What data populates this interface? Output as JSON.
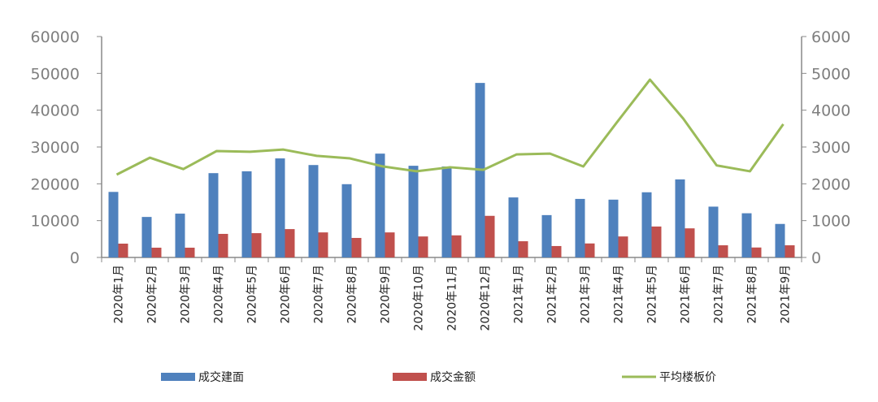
{
  "chart_data": {
    "type": "bar+line",
    "categories": [
      "2020年1月",
      "2020年2月",
      "2020年3月",
      "2020年4月",
      "2020年5月",
      "2020年6月",
      "2020年7月",
      "2020年8月",
      "2020年9月",
      "2020年10月",
      "2020年11月",
      "2020年12月",
      "2021年1月",
      "2021年2月",
      "2021年3月",
      "2021年4月",
      "2021年5月",
      "2021年6月",
      "2021年7月",
      "2021年8月",
      "2021年9月"
    ],
    "series": [
      {
        "name": "成交建面",
        "type": "bar",
        "axis": "left",
        "color": "#4f81bd",
        "values": [
          17800,
          11000,
          11900,
          22900,
          23400,
          26900,
          25100,
          19900,
          28200,
          24900,
          24700,
          47400,
          16300,
          11500,
          15900,
          15700,
          17700,
          21200,
          13800,
          12000,
          9100
        ]
      },
      {
        "name": "成交金额",
        "type": "bar",
        "axis": "left",
        "color": "#c0504d",
        "values": [
          3750,
          2650,
          2650,
          6400,
          6600,
          7700,
          6800,
          5300,
          6800,
          5700,
          6000,
          11300,
          4400,
          3100,
          3800,
          5700,
          8400,
          7900,
          3300,
          2700,
          3300
        ]
      },
      {
        "name": "平均楼板价",
        "type": "line",
        "axis": "right",
        "color": "#9bbb59",
        "values": [
          2250,
          2710,
          2400,
          2890,
          2870,
          2930,
          2760,
          2690,
          2470,
          2340,
          2450,
          2380,
          2800,
          2820,
          2470,
          3660,
          4830,
          3770,
          2500,
          2340,
          3620
        ]
      }
    ],
    "left_axis": {
      "ylim": [
        0,
        60000
      ],
      "ticks": [
        "0",
        "10000",
        "20000",
        "30000",
        "40000",
        "50000",
        "60000"
      ]
    },
    "right_axis": {
      "ylim": [
        0,
        6000
      ],
      "ticks": [
        "0",
        "1000",
        "2000",
        "3000",
        "4000",
        "5000",
        "6000"
      ]
    },
    "grid": false,
    "legend": "bottom"
  }
}
